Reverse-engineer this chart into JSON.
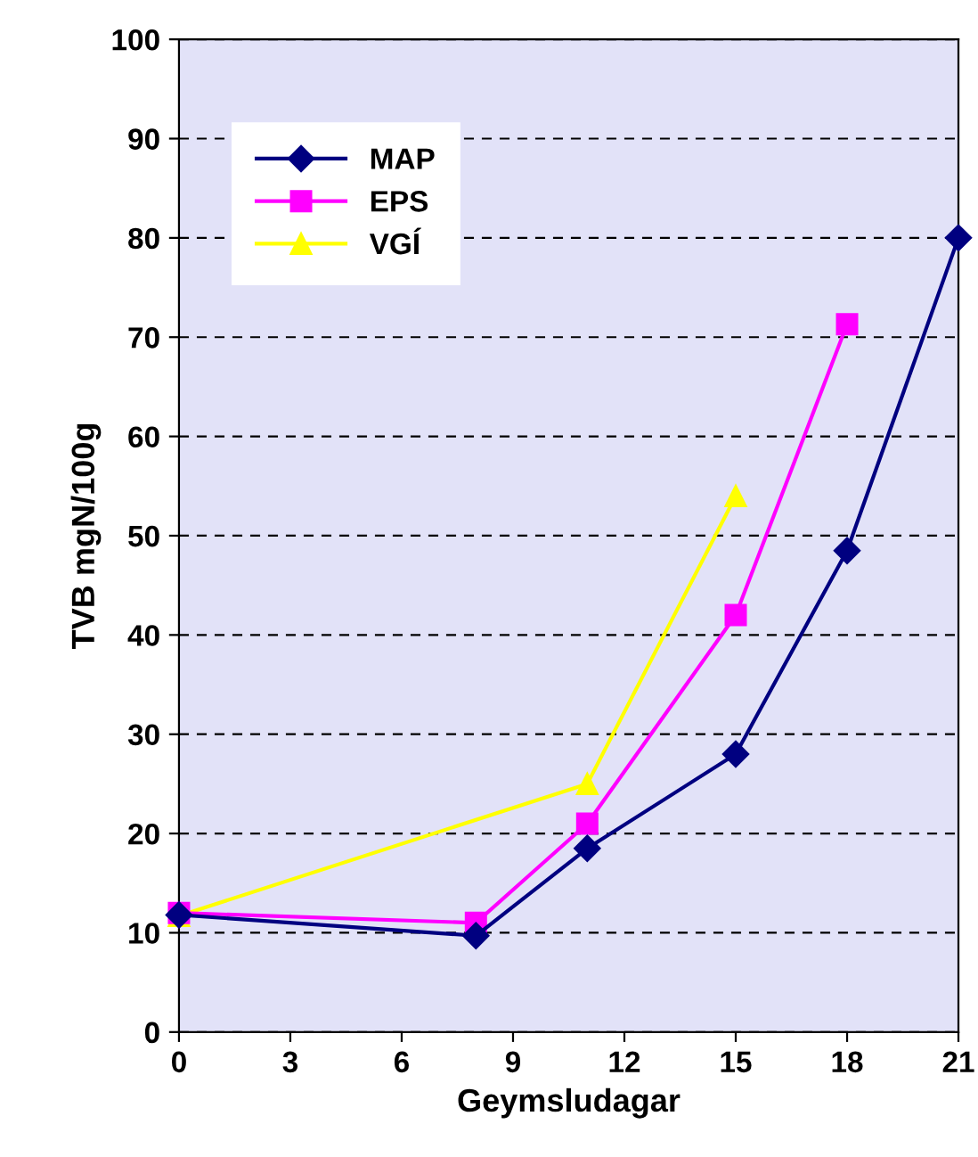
{
  "chart_data": {
    "type": "line",
    "xlabel": "Geymsludagar",
    "ylabel": "TVB mgN/100g",
    "xlim": [
      0,
      21
    ],
    "xticks": [
      0,
      3,
      6,
      9,
      12,
      15,
      18,
      21
    ],
    "ylim": [
      0,
      100
    ],
    "yticks": [
      0,
      10,
      20,
      30,
      40,
      50,
      60,
      70,
      80,
      90,
      100
    ],
    "grid": "y",
    "legend": "top left",
    "line_style": "solid",
    "series": [
      {
        "name": "MAP",
        "color": "#000080",
        "marker": "diamond",
        "x": [
          0,
          8,
          11,
          15,
          18,
          21
        ],
        "values": [
          11.8,
          9.7,
          18.5,
          28,
          48.5,
          80
        ]
      },
      {
        "name": "EPS",
        "color": "#ff00ff",
        "marker": "square",
        "x": [
          0,
          8,
          11,
          15,
          18
        ],
        "values": [
          12,
          11,
          21,
          42,
          71.3
        ]
      },
      {
        "name": "VGÍ",
        "color": "#ffff00",
        "marker": "triangle",
        "x": [
          0,
          11,
          15
        ],
        "values": [
          11.7,
          25,
          54
        ]
      }
    ]
  }
}
